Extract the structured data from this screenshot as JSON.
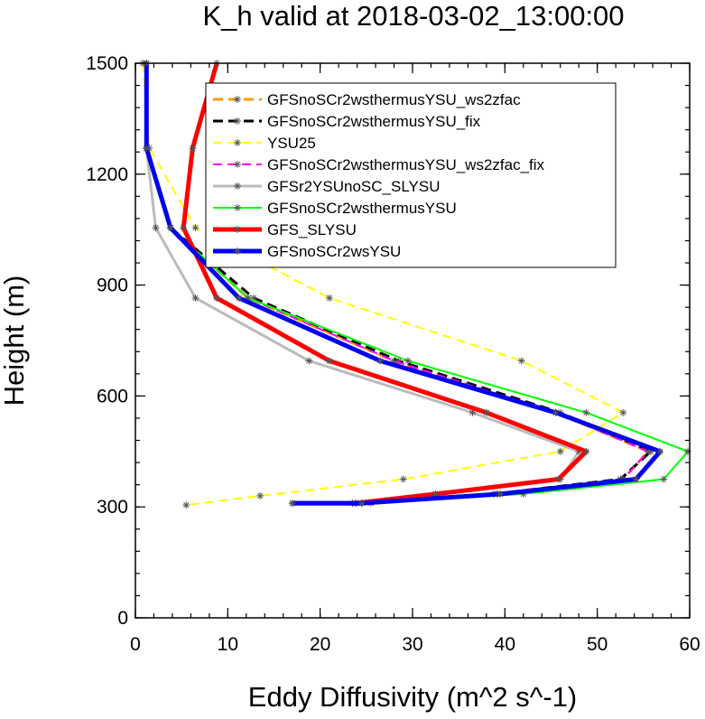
{
  "chart_data": {
    "type": "line",
    "title": "K_h valid at 2018-03-02_13:00:00",
    "xlabel": "Eddy Diffusivity (m^2 s^-1)",
    "ylabel": "Height (m)",
    "xlim": [
      0,
      60
    ],
    "ylim": [
      0,
      1500
    ],
    "xticks": [
      0,
      10,
      20,
      30,
      40,
      50,
      60
    ],
    "yticks": [
      0,
      300,
      600,
      900,
      1200,
      1500
    ],
    "legend_placement": "upper-center",
    "series": [
      {
        "name": "GFSnoSCr2wsthermusYSU_ws2zfac",
        "color": "#ff9900",
        "dash": "dash",
        "width": 3,
        "points": [
          [
            1.2,
            1500
          ],
          [
            1.2,
            1270
          ],
          [
            3.8,
            1055
          ],
          [
            12.2,
            865
          ],
          [
            28,
            695
          ],
          [
            45.5,
            555
          ],
          [
            55.5,
            450
          ],
          [
            52.8,
            375
          ],
          [
            39.2,
            335
          ],
          [
            24.5,
            310
          ],
          [
            17,
            310
          ]
        ]
      },
      {
        "name": "GFSnoSCr2wsthermusYSU_fix",
        "color": "#000000",
        "dash": "dash",
        "width": 3,
        "points": [
          [
            1.2,
            1500
          ],
          [
            1.2,
            1270
          ],
          [
            3.8,
            1055
          ],
          [
            12.8,
            865
          ],
          [
            28.5,
            695
          ],
          [
            46,
            555
          ],
          [
            55.8,
            450
          ],
          [
            52.5,
            375
          ],
          [
            38.8,
            335
          ],
          [
            24,
            310
          ],
          [
            17,
            310
          ]
        ]
      },
      {
        "name": "YSU25",
        "color": "#ffff00",
        "dash": "dash",
        "width": 2,
        "points": [
          [
            0.8,
            1500
          ],
          [
            1.5,
            1270
          ],
          [
            6.5,
            1055
          ],
          [
            21,
            865
          ],
          [
            41.8,
            695
          ],
          [
            52.8,
            555
          ],
          [
            46,
            450
          ],
          [
            29,
            375
          ],
          [
            13.5,
            330
          ],
          [
            5.5,
            305
          ]
        ]
      },
      {
        "name": "GFSnoSCr2wsthermusYSU_ws2zfac_fix",
        "color": "#ff00ff",
        "dash": "dash",
        "width": 2,
        "points": [
          [
            1.2,
            1500
          ],
          [
            1.2,
            1270
          ],
          [
            3.8,
            1055
          ],
          [
            12.2,
            865
          ],
          [
            28,
            695
          ],
          [
            45.5,
            555
          ],
          [
            55.5,
            450
          ],
          [
            52.8,
            375
          ],
          [
            39.2,
            335
          ],
          [
            24.5,
            310
          ],
          [
            17,
            310
          ]
        ]
      },
      {
        "name": "GFSr2YSUnoSC_SLYSU",
        "color": "#bbbbbb",
        "dash": "solid",
        "width": 3,
        "points": [
          [
            1.2,
            1500
          ],
          [
            1.2,
            1270
          ],
          [
            2.2,
            1055
          ],
          [
            6.5,
            865
          ],
          [
            18.8,
            695
          ],
          [
            36.5,
            555
          ],
          [
            48,
            450
          ],
          [
            46,
            375
          ],
          [
            32.5,
            335
          ],
          [
            23.5,
            310
          ],
          [
            17,
            310
          ]
        ]
      },
      {
        "name": "GFSnoSCr2wsthermusYSU",
        "color": "#00ff00",
        "dash": "solid",
        "width": 2,
        "points": [
          [
            1.2,
            1500
          ],
          [
            1.2,
            1270
          ],
          [
            3.8,
            1055
          ],
          [
            12.2,
            865
          ],
          [
            29.5,
            695
          ],
          [
            48.8,
            555
          ],
          [
            59.8,
            450
          ],
          [
            57.2,
            375
          ],
          [
            42,
            335
          ],
          [
            25.5,
            310
          ],
          [
            17,
            310
          ]
        ]
      },
      {
        "name": "GFS_SLYSU",
        "color": "#ff0000",
        "dash": "solid",
        "width": 5,
        "points": [
          [
            8.8,
            1500
          ],
          [
            6.2,
            1270
          ],
          [
            5.2,
            1055
          ],
          [
            8.8,
            865
          ],
          [
            21,
            695
          ],
          [
            38,
            555
          ],
          [
            48.8,
            450
          ],
          [
            45.8,
            375
          ],
          [
            32.5,
            335
          ],
          [
            23.8,
            310
          ],
          [
            17,
            310
          ]
        ]
      },
      {
        "name": "GFSnoSCr2wsYSU",
        "color": "#0000ee",
        "dash": "solid",
        "width": 5,
        "points": [
          [
            1.2,
            1500
          ],
          [
            1.2,
            1270
          ],
          [
            3.8,
            1055
          ],
          [
            11.2,
            865
          ],
          [
            26.5,
            695
          ],
          [
            45.5,
            555
          ],
          [
            56.8,
            450
          ],
          [
            54.2,
            375
          ],
          [
            39.5,
            335
          ],
          [
            24.5,
            310
          ],
          [
            17,
            310
          ]
        ]
      }
    ]
  }
}
